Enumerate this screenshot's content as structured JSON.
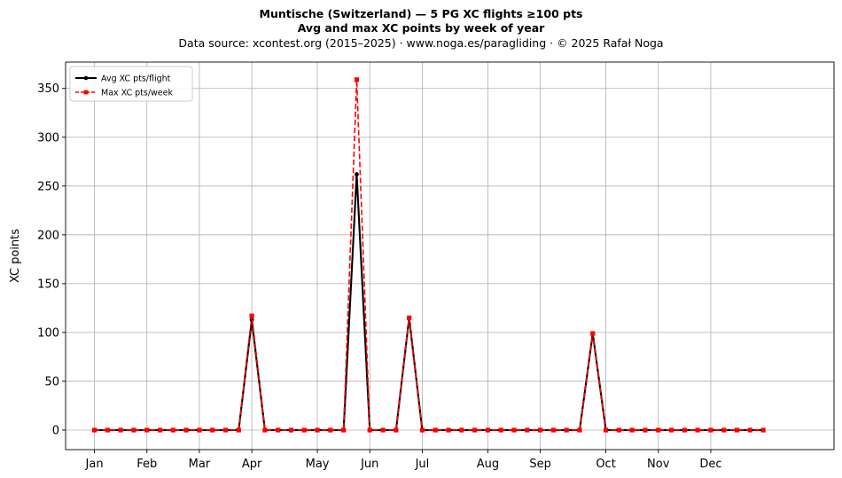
{
  "chart_data": {
    "type": "line",
    "title_lines": [
      "Muntische (Switzerland)  —  5 PG XC flights ≥100 pts",
      "Avg and max XC points by week of year"
    ],
    "subtitle": "Data source: xcontest.org (2015–2025)  ·  www.noga.es/paragliding  ·  © 2025 Rafał Noga",
    "xlabel": "",
    "ylabel": "XC points",
    "ylim": [
      -20,
      377
    ],
    "yticks": [
      0,
      50,
      100,
      150,
      200,
      250,
      300,
      350
    ],
    "xlim": [
      -2.2,
      56.4
    ],
    "x_tick_positions": [
      0,
      4,
      8,
      12,
      17,
      21,
      25,
      30,
      34,
      39,
      43,
      47
    ],
    "x_tick_labels": [
      "Jan",
      "Feb",
      "Mar",
      "Apr",
      "May",
      "Jun",
      "Jul",
      "Aug",
      "Sep",
      "Oct",
      "Nov",
      "Dec"
    ],
    "grid": true,
    "legend_position": "top-left",
    "x": [
      0,
      1,
      2,
      3,
      4,
      5,
      6,
      7,
      8,
      9,
      10,
      11,
      12,
      13,
      14,
      15,
      16,
      17,
      18,
      19,
      20,
      21,
      22,
      23,
      24,
      25,
      26,
      27,
      28,
      29,
      30,
      31,
      32,
      33,
      34,
      35,
      36,
      37,
      38,
      39,
      40,
      41,
      42,
      43,
      44,
      45,
      46,
      47,
      48,
      49,
      50,
      51
    ],
    "series": [
      {
        "name": "Avg XC pts/flight",
        "color": "#000000",
        "style": "solid",
        "marker": "circle",
        "values": [
          0,
          0,
          0,
          0,
          0,
          0,
          0,
          0,
          0,
          0,
          0,
          0,
          113,
          0,
          0,
          0,
          0,
          0,
          0,
          0,
          262,
          0,
          0,
          0,
          115,
          0,
          0,
          0,
          0,
          0,
          0,
          0,
          0,
          0,
          0,
          0,
          0,
          0,
          99,
          0,
          0,
          0,
          0,
          0,
          0,
          0,
          0,
          0,
          0,
          0,
          0,
          0
        ]
      },
      {
        "name": "Max XC pts/week",
        "color": "#ff0000",
        "style": "dashed",
        "marker": "square",
        "values": [
          0,
          0,
          0,
          0,
          0,
          0,
          0,
          0,
          0,
          0,
          0,
          0,
          117,
          0,
          0,
          0,
          0,
          0,
          0,
          0,
          359,
          0,
          0,
          0,
          115,
          0,
          0,
          0,
          0,
          0,
          0,
          0,
          0,
          0,
          0,
          0,
          0,
          0,
          99,
          0,
          0,
          0,
          0,
          0,
          0,
          0,
          0,
          0,
          0,
          0,
          0,
          0
        ]
      }
    ]
  }
}
